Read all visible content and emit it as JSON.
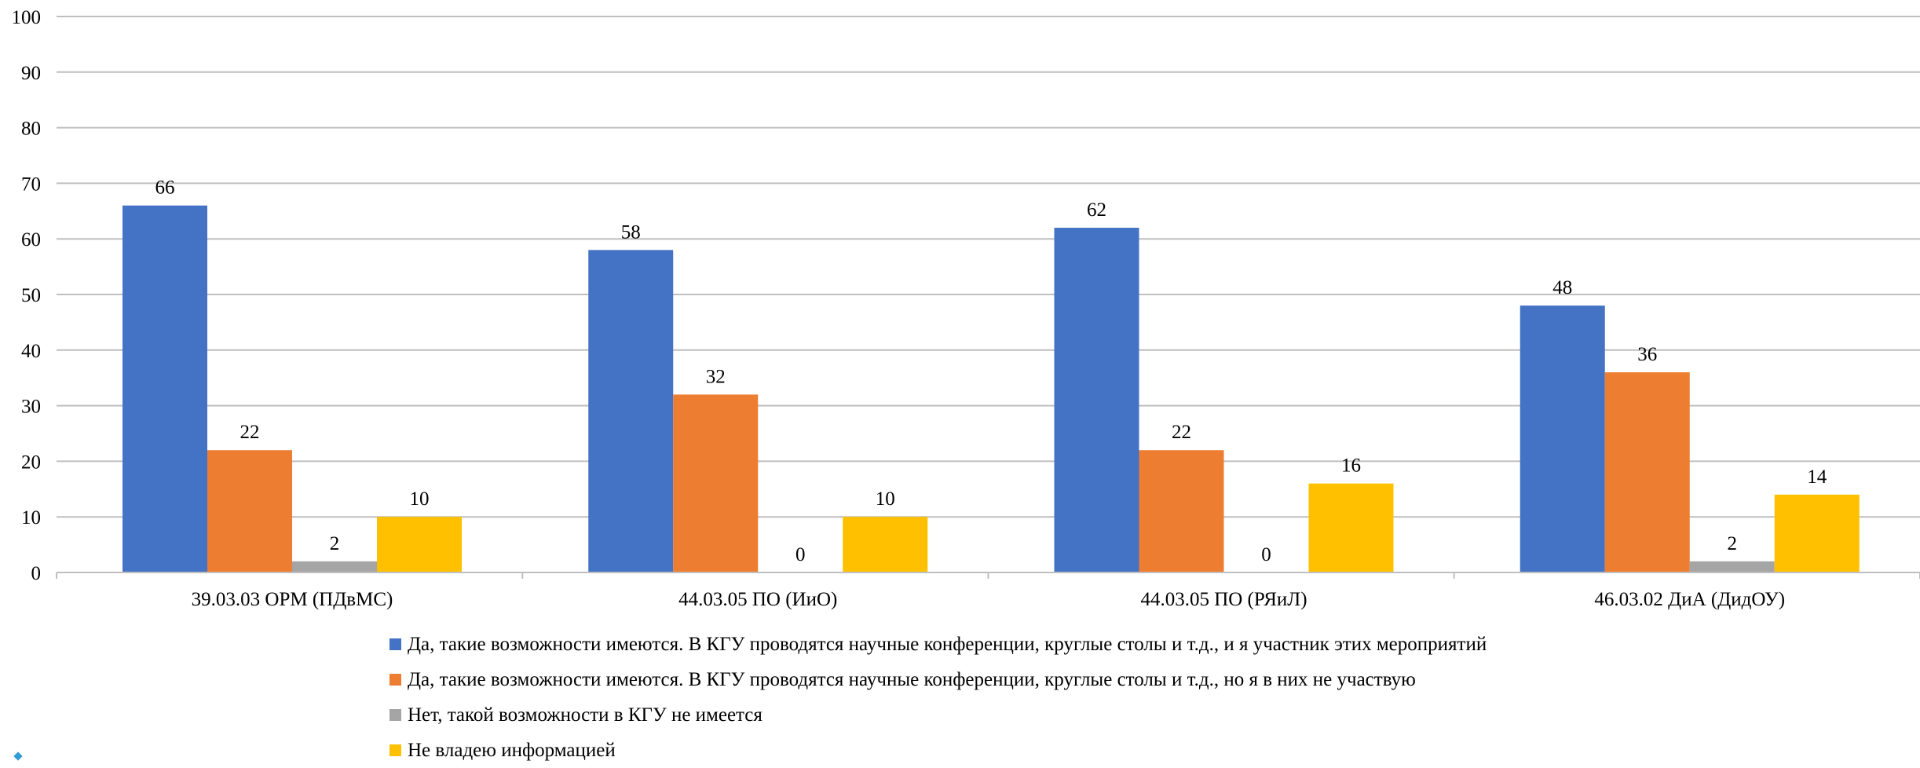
{
  "chart_data": {
    "type": "bar",
    "title": "",
    "xlabel": "",
    "ylabel": "",
    "ylim": [
      0,
      100
    ],
    "yticks": [
      "0",
      "10",
      "20",
      "30",
      "40",
      "50",
      "60",
      "70",
      "80",
      "90",
      "100"
    ],
    "grid": true,
    "legend_position": "bottom",
    "categories": [
      "39.03.03 ОРМ (ПДвМС)",
      "44.03.05 ПО (ИиО)",
      "44.03.05 ПО (РЯиЛ)",
      "46.03.02 ДиА (ДидОУ)"
    ],
    "series": [
      {
        "name": "Да, такие возможности имеются. В КГУ проводятся научные конференции, круглые столы и т.д., и я участник этих мероприятий",
        "color": "#4472C4",
        "values": [
          66,
          58,
          62,
          48
        ]
      },
      {
        "name": "Да, такие возможности имеются. В КГУ проводятся научные конференции, круглые столы и т.д., но я в них не участвую",
        "color": "#ED7D31",
        "values": [
          22,
          32,
          22,
          36
        ]
      },
      {
        "name": "Нет, такой возможности в КГУ не имеется",
        "color": "#A5A5A5",
        "values": [
          2,
          0,
          0,
          2
        ]
      },
      {
        "name": "Не владею информацией",
        "color": "#FFC000",
        "values": [
          10,
          10,
          16,
          14
        ]
      }
    ]
  }
}
